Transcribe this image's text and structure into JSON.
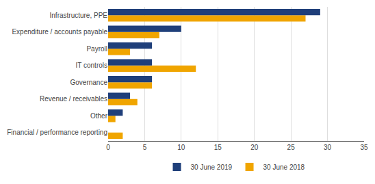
{
  "chart_data": {
    "type": "bar",
    "orientation": "horizontal",
    "categories": [
      "Financial / performance reporting",
      "Other",
      "Revenue / receivables",
      "Governance",
      "IT controls",
      "Payroll",
      "Expenditure / accounts payable",
      "Infrastructure, PPE"
    ],
    "series": [
      {
        "name": "30 June 2019",
        "color": "#1f3f7a",
        "values": [
          0,
          2,
          3,
          6,
          6,
          6,
          10,
          29
        ]
      },
      {
        "name": "30 June 2018",
        "color": "#f0a500",
        "values": [
          2,
          1,
          4,
          6,
          12,
          3,
          7,
          27
        ]
      }
    ],
    "xlim": [
      0,
      35
    ],
    "xticks": [
      0,
      5,
      10,
      15,
      20,
      25,
      30,
      35
    ],
    "grid": true,
    "legend": "bottom"
  }
}
